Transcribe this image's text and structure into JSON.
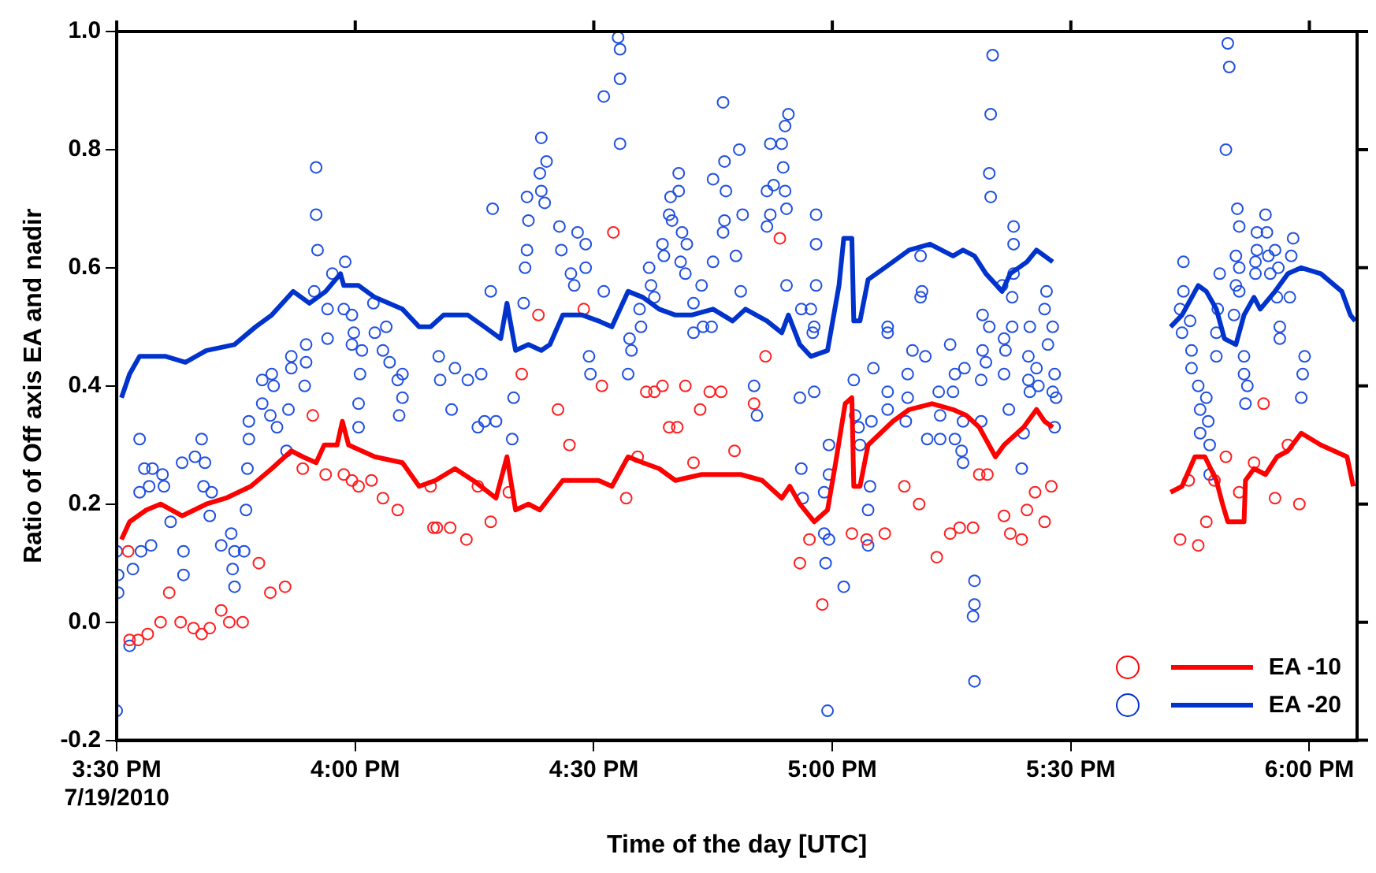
{
  "chart_data": {
    "type": "scatter",
    "xlabel": "Time of the day [UTC]",
    "ylabel": "Ratio of Off axis EA and nadir",
    "legend": "bottom right",
    "grid": false,
    "xlim": [
      15.5,
      18.1
    ],
    "ylim": [
      -0.2,
      1.0
    ],
    "xticks": [
      {
        "value": 15.5,
        "label": "3:30 PM\n7/19/2010"
      },
      {
        "value": 16,
        "label": "4:00 PM"
      },
      {
        "value": 16.5,
        "label": "4:30 PM"
      },
      {
        "value": 17,
        "label": "5:00 PM"
      },
      {
        "value": 17.5,
        "label": "5:30 PM"
      },
      {
        "value": 18,
        "label": "6:00 PM"
      }
    ],
    "yticks": [
      {
        "value": -0.2,
        "label": "-0.2"
      },
      {
        "value": 0,
        "label": "0.0"
      },
      {
        "value": 0.2,
        "label": "0.2"
      },
      {
        "value": 0.4,
        "label": "0.4"
      },
      {
        "value": 0.6,
        "label": "0.6"
      },
      {
        "value": 0.8,
        "label": "0.8"
      },
      {
        "value": 1.0,
        "label": "1.0"
      }
    ],
    "series": [
      {
        "marker": "circle",
        "color": "#ff2020",
        "x": [
          15.524,
          15.61,
          15.527,
          15.545,
          15.565,
          15.592,
          15.634,
          15.661,
          15.678,
          15.695,
          15.719,
          15.736,
          15.764,
          15.798,
          15.822,
          15.853,
          15.911,
          15.89,
          15.938,
          15.976,
          15.993,
          16.007,
          16.034,
          16.058,
          16.089,
          16.164,
          16.158,
          16.171,
          16.199,
          16.233,
          16.284,
          16.257,
          16.322,
          16.349,
          16.384,
          16.479,
          16.425,
          16.449,
          16.517,
          16.541,
          16.568,
          16.592,
          16.61,
          16.627,
          16.644,
          16.692,
          16.658,
          16.675,
          16.723,
          16.743,
          16.767,
          16.709,
          16.795,
          16.89,
          16.86,
          16.836,
          16.932,
          16.952,
          16.979,
          17.041,
          17.072,
          17.11,
          17.151,
          17.182,
          17.219,
          17.247,
          17.267,
          17.295,
          17.308,
          17.325,
          17.36,
          17.373,
          17.397,
          17.408,
          17.425,
          17.445,
          17.459,
          17.904,
          17.825,
          17.955,
          17.884,
          17.853,
          17.928,
          17.979,
          17.801,
          17.747,
          17.784,
          17.729,
          17.767
        ],
        "values": [
          0.12,
          0.05,
          -0.03,
          -0.03,
          -0.02,
          0.0,
          0.0,
          -0.01,
          -0.02,
          -0.01,
          0.02,
          0.0,
          0.0,
          0.1,
          0.05,
          0.06,
          0.35,
          0.26,
          0.25,
          0.25,
          0.24,
          0.23,
          0.24,
          0.21,
          0.19,
          0.16,
          0.23,
          0.16,
          0.16,
          0.14,
          0.17,
          0.23,
          0.22,
          0.42,
          0.52,
          0.53,
          0.36,
          0.3,
          0.4,
          0.66,
          0.21,
          0.28,
          0.39,
          0.39,
          0.4,
          0.4,
          0.33,
          0.33,
          0.36,
          0.39,
          0.39,
          0.27,
          0.29,
          0.65,
          0.45,
          0.37,
          0.1,
          0.14,
          0.03,
          0.15,
          0.14,
          0.15,
          0.23,
          0.2,
          0.11,
          0.15,
          0.16,
          0.16,
          0.25,
          0.25,
          0.18,
          0.15,
          0.14,
          0.19,
          0.22,
          0.17,
          0.23,
          0.37,
          0.28,
          0.3,
          0.27,
          0.22,
          0.21,
          0.2,
          0.24,
          0.24,
          0.17,
          0.14,
          0.13
        ]
      },
      {
        "marker": "circle",
        "color": "#2050e0",
        "x": [
          15.5,
          15.503,
          15.503,
          15.5,
          15.527,
          15.548,
          15.534,
          15.551,
          15.572,
          15.558,
          15.575,
          15.596,
          15.548,
          15.568,
          15.599,
          15.637,
          15.613,
          15.64,
          15.64,
          15.664,
          15.678,
          15.685,
          15.682,
          15.699,
          15.695,
          15.719,
          15.74,
          15.747,
          15.743,
          15.747,
          15.767,
          15.771,
          15.774,
          15.777,
          15.777,
          15.805,
          15.805,
          15.825,
          15.829,
          15.822,
          15.836,
          15.856,
          15.86,
          15.866,
          15.866,
          15.897,
          15.897,
          15.894,
          15.942,
          15.918,
          15.918,
          15.921,
          15.914,
          15.952,
          15.979,
          15.942,
          15.976,
          15.993,
          15.997,
          15.993,
          16.014,
          16.01,
          16.007,
          16.007,
          16.038,
          16.041,
          16.058,
          16.072,
          16.065,
          16.089,
          16.099,
          16.092,
          16.099,
          16.175,
          16.178,
          16.202,
          16.209,
          16.236,
          16.257,
          16.264,
          16.271,
          16.284,
          16.288,
          16.295,
          16.329,
          16.332,
          16.353,
          16.356,
          16.36,
          16.36,
          16.363,
          16.387,
          16.39,
          16.401,
          16.39,
          16.397,
          16.428,
          16.432,
          16.466,
          16.452,
          16.459,
          16.483,
          16.483,
          16.49,
          16.493,
          16.521,
          16.521,
          16.551,
          16.555,
          16.555,
          16.555,
          16.572,
          16.579,
          16.575,
          16.599,
          16.596,
          16.616,
          16.62,
          16.627,
          16.644,
          16.647,
          16.658,
          16.661,
          16.664,
          16.678,
          16.678,
          16.685,
          16.695,
          16.682,
          16.692,
          16.709,
          16.726,
          16.709,
          16.729,
          16.747,
          16.75,
          16.75,
          16.771,
          16.774,
          16.777,
          16.774,
          16.771,
          16.798,
          16.805,
          16.808,
          16.812,
          16.836,
          16.842,
          16.87,
          16.894,
          16.901,
          16.908,
          16.897,
          16.901,
          16.877,
          16.863,
          16.87,
          16.904,
          16.863,
          16.904,
          16.932,
          16.935,
          16.935,
          16.938,
          16.966,
          16.966,
          16.966,
          16.955,
          16.962,
          16.959,
          16.962,
          16.983,
          16.993,
          16.993,
          16.983,
          16.993,
          16.986,
          16.99,
          17.024,
          17.045,
          17.055,
          17.048,
          17.058,
          17.079,
          17.075,
          17.075,
          17.082,
          17.086,
          17.116,
          17.116,
          17.116,
          17.116,
          17.158,
          17.158,
          17.154,
          17.168,
          17.195,
          17.185,
          17.185,
          17.188,
          17.199,
          17.223,
          17.226,
          17.226,
          17.247,
          17.257,
          17.253,
          17.257,
          17.271,
          17.274,
          17.277,
          17.274,
          17.298,
          17.298,
          17.295,
          17.298,
          17.312,
          17.312,
          17.315,
          17.315,
          17.329,
          17.322,
          17.329,
          17.332,
          17.336,
          17.332,
          17.356,
          17.36,
          17.363,
          17.36,
          17.37,
          17.377,
          17.377,
          17.38,
          17.38,
          17.38,
          17.397,
          17.401,
          17.411,
          17.414,
          17.411,
          17.414,
          17.428,
          17.432,
          17.445,
          17.449,
          17.452,
          17.462,
          17.466,
          17.462,
          17.469,
          17.466,
          17.736,
          17.736,
          17.729,
          17.733,
          17.75,
          17.753,
          17.753,
          17.767,
          17.784,
          17.771,
          17.788,
          17.771,
          17.791,
          17.791,
          17.812,
          17.808,
          17.805,
          17.805,
          17.829,
          17.832,
          17.825,
          17.849,
          17.853,
          17.846,
          17.853,
          17.846,
          17.853,
          17.842,
          17.863,
          17.863,
          17.87,
          17.866,
          17.89,
          17.89,
          17.887,
          17.887,
          17.908,
          17.911,
          17.914,
          17.918,
          17.935,
          17.928,
          17.932,
          17.938,
          17.938,
          17.959,
          17.962,
          17.966,
          17.99,
          17.986,
          17.983
        ],
        "values": [
          0.12,
          0.08,
          0.05,
          -0.15,
          -0.04,
          0.31,
          0.09,
          0.12,
          0.13,
          0.26,
          0.26,
          0.25,
          0.22,
          0.23,
          0.23,
          0.27,
          0.17,
          0.12,
          0.08,
          0.28,
          0.31,
          0.27,
          0.23,
          0.22,
          0.18,
          0.13,
          0.15,
          0.12,
          0.09,
          0.06,
          0.12,
          0.19,
          0.26,
          0.31,
          0.34,
          0.41,
          0.37,
          0.42,
          0.4,
          0.35,
          0.33,
          0.29,
          0.36,
          0.43,
          0.45,
          0.47,
          0.44,
          0.4,
          0.48,
          0.77,
          0.69,
          0.63,
          0.56,
          0.59,
          0.61,
          0.53,
          0.53,
          0.52,
          0.49,
          0.47,
          0.46,
          0.42,
          0.37,
          0.33,
          0.54,
          0.49,
          0.46,
          0.44,
          0.5,
          0.41,
          0.38,
          0.35,
          0.42,
          0.45,
          0.41,
          0.36,
          0.43,
          0.41,
          0.33,
          0.42,
          0.34,
          0.56,
          0.7,
          0.34,
          0.31,
          0.38,
          0.54,
          0.6,
          0.63,
          0.72,
          0.68,
          0.76,
          0.82,
          0.78,
          0.73,
          0.71,
          0.67,
          0.63,
          0.66,
          0.59,
          0.57,
          0.64,
          0.6,
          0.45,
          0.42,
          0.89,
          0.56,
          0.99,
          0.97,
          0.92,
          0.81,
          0.42,
          0.46,
          0.48,
          0.5,
          0.53,
          0.6,
          0.57,
          0.55,
          0.64,
          0.62,
          0.69,
          0.72,
          0.68,
          0.76,
          0.73,
          0.66,
          0.64,
          0.61,
          0.59,
          0.54,
          0.57,
          0.49,
          0.5,
          0.5,
          0.75,
          0.61,
          0.88,
          0.78,
          0.73,
          0.68,
          0.66,
          0.62,
          0.8,
          0.56,
          0.69,
          0.4,
          0.35,
          0.81,
          0.81,
          0.84,
          0.86,
          0.77,
          0.73,
          0.74,
          0.73,
          0.69,
          0.7,
          0.67,
          0.57,
          0.38,
          0.53,
          0.26,
          0.21,
          0.69,
          0.64,
          0.57,
          0.53,
          0.5,
          0.49,
          0.39,
          0.22,
          0.3,
          0.25,
          0.15,
          0.14,
          0.1,
          -0.15,
          0.06,
          0.41,
          0.33,
          0.35,
          0.3,
          0.23,
          0.19,
          0.13,
          0.34,
          0.43,
          0.5,
          0.49,
          0.39,
          0.36,
          0.42,
          0.38,
          0.34,
          0.46,
          0.45,
          0.62,
          0.55,
          0.56,
          0.31,
          0.39,
          0.35,
          0.31,
          0.47,
          0.42,
          0.39,
          0.31,
          0.29,
          0.27,
          0.43,
          0.34,
          0.07,
          0.03,
          0.01,
          -0.1,
          0.34,
          0.41,
          0.46,
          0.52,
          0.5,
          0.44,
          0.76,
          0.86,
          0.96,
          0.72,
          0.57,
          0.48,
          0.46,
          0.42,
          0.36,
          0.5,
          0.55,
          0.59,
          0.67,
          0.64,
          0.26,
          0.32,
          0.45,
          0.5,
          0.41,
          0.39,
          0.43,
          0.4,
          0.53,
          0.56,
          0.47,
          0.5,
          0.42,
          0.39,
          0.38,
          0.33,
          0.61,
          0.56,
          0.53,
          0.49,
          0.51,
          0.46,
          0.43,
          0.4,
          0.38,
          0.36,
          0.34,
          0.32,
          0.3,
          0.25,
          0.59,
          0.53,
          0.49,
          0.45,
          0.98,
          0.94,
          0.8,
          0.7,
          0.67,
          0.62,
          0.6,
          0.57,
          0.56,
          0.52,
          0.45,
          0.42,
          0.4,
          0.37,
          0.66,
          0.63,
          0.61,
          0.59,
          0.69,
          0.66,
          0.62,
          0.59,
          0.6,
          0.63,
          0.55,
          0.5,
          0.48,
          0.55,
          0.62,
          0.65,
          0.45,
          0.42,
          0.38
        ]
      },
      {
        "type": "line",
        "marker": "none",
        "name": "EA -10",
        "color": "#ff0000",
        "x": [
          15.51,
          15.527,
          15.562,
          15.592,
          15.637,
          15.688,
          15.729,
          15.781,
          15.825,
          15.866,
          15.89,
          15.918,
          15.935,
          15.962,
          15.973,
          15.986,
          16.041,
          16.099,
          16.134,
          16.168,
          16.209,
          16.247,
          16.295,
          16.318,
          16.336,
          16.363,
          16.387,
          16.435,
          16.51,
          16.538,
          16.572,
          16.603,
          16.637,
          16.671,
          16.726,
          16.808,
          16.853,
          16.894,
          16.911,
          16.932,
          16.962,
          16.99,
          17.007,
          17.027,
          17.041,
          17.045,
          17.058,
          17.075,
          17.127,
          17.161,
          17.209,
          17.253,
          17.281,
          17.308,
          17.342,
          17.36,
          17.401,
          17.428,
          17.445,
          17.462,
          17.6,
          17.709,
          17.733,
          17.76,
          17.781,
          17.805,
          17.818,
          17.829,
          17.863,
          17.866,
          17.884,
          17.908,
          17.932,
          17.955,
          17.983,
          18.024,
          18.079,
          18.092
        ],
        "values": [
          0.14,
          0.17,
          0.19,
          0.2,
          0.18,
          0.2,
          0.21,
          0.23,
          0.26,
          0.29,
          0.28,
          0.27,
          0.3,
          0.3,
          0.34,
          0.3,
          0.28,
          0.27,
          0.23,
          0.24,
          0.26,
          0.24,
          0.21,
          0.28,
          0.19,
          0.2,
          0.19,
          0.24,
          0.24,
          0.23,
          0.28,
          0.27,
          0.26,
          0.24,
          0.25,
          0.25,
          0.24,
          0.21,
          0.23,
          0.2,
          0.17,
          0.19,
          0.27,
          0.37,
          0.38,
          0.23,
          0.23,
          0.3,
          0.34,
          0.36,
          0.37,
          0.36,
          0.35,
          0.33,
          0.28,
          0.3,
          0.33,
          0.36,
          0.34,
          0.33,
          null,
          0.22,
          0.23,
          0.28,
          0.28,
          0.24,
          0.2,
          0.17,
          0.17,
          0.24,
          0.26,
          0.25,
          0.28,
          0.29,
          0.32,
          0.3,
          0.28,
          0.23
        ]
      },
      {
        "type": "line",
        "marker": "none",
        "name": "EA -20",
        "color": "#0033cc",
        "x": [
          15.51,
          15.527,
          15.548,
          15.575,
          15.603,
          15.644,
          15.688,
          15.747,
          15.791,
          15.825,
          15.87,
          15.904,
          15.938,
          15.969,
          15.976,
          16.007,
          16.041,
          16.099,
          16.134,
          16.158,
          16.185,
          16.236,
          16.271,
          16.305,
          16.318,
          16.336,
          16.363,
          16.39,
          16.408,
          16.435,
          16.476,
          16.51,
          16.538,
          16.572,
          16.603,
          16.637,
          16.671,
          16.705,
          16.75,
          16.791,
          16.818,
          16.863,
          16.894,
          16.908,
          16.932,
          16.955,
          16.99,
          17.014,
          17.024,
          17.041,
          17.045,
          17.058,
          17.075,
          17.127,
          17.161,
          17.205,
          17.253,
          17.274,
          17.298,
          17.322,
          17.356,
          17.373,
          17.408,
          17.428,
          17.445,
          17.462,
          17.6,
          17.709,
          17.733,
          17.767,
          17.784,
          17.805,
          17.822,
          17.846,
          17.863,
          17.884,
          17.897,
          17.928,
          17.955,
          17.983,
          18.024,
          18.068,
          18.086,
          18.096
        ],
        "values": [
          0.38,
          0.42,
          0.45,
          0.45,
          0.45,
          0.44,
          0.46,
          0.47,
          0.5,
          0.52,
          0.56,
          0.54,
          0.56,
          0.59,
          0.57,
          0.57,
          0.55,
          0.53,
          0.5,
          0.5,
          0.52,
          0.52,
          0.5,
          0.48,
          0.54,
          0.46,
          0.47,
          0.46,
          0.47,
          0.52,
          0.52,
          0.51,
          0.5,
          0.56,
          0.55,
          0.53,
          0.52,
          0.52,
          0.53,
          0.51,
          0.53,
          0.51,
          0.49,
          0.52,
          0.47,
          0.45,
          0.46,
          0.57,
          0.65,
          0.65,
          0.51,
          0.51,
          0.58,
          0.61,
          0.63,
          0.64,
          0.62,
          0.63,
          0.62,
          0.59,
          0.56,
          0.59,
          0.61,
          0.63,
          0.62,
          0.61,
          null,
          0.5,
          0.52,
          0.57,
          0.56,
          0.53,
          0.48,
          0.47,
          0.52,
          0.55,
          0.53,
          0.56,
          0.59,
          0.6,
          0.59,
          0.56,
          0.52,
          0.51
        ]
      }
    ]
  }
}
